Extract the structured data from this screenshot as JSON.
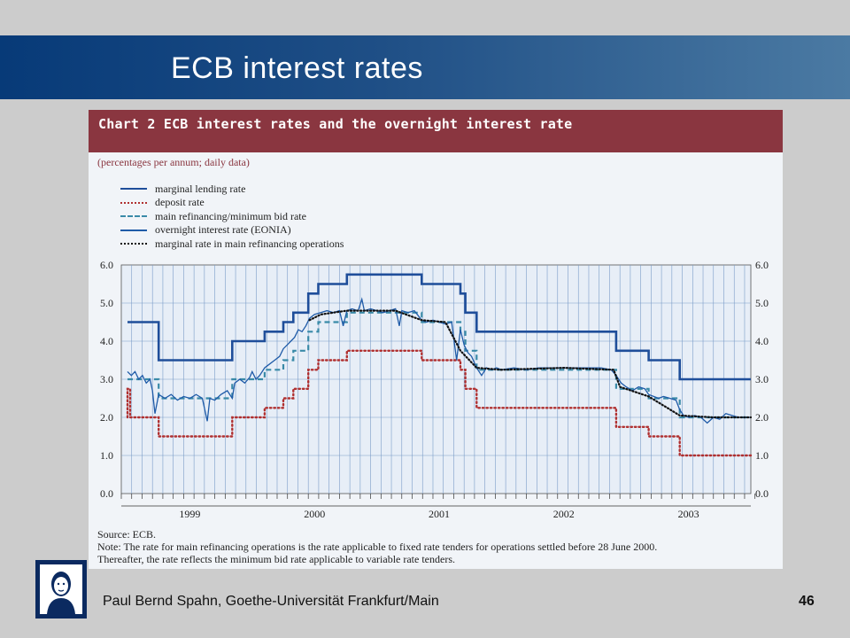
{
  "slide": {
    "title": "ECB interest rates",
    "footer": "Paul Bernd Spahn, Goethe-Universität Frankfurt/Main",
    "page_number": "46"
  },
  "colors": {
    "header_band": "#0b3d7a",
    "chart_header": "#8a3640",
    "chart_bg": "#f1f4f8",
    "grid": "#7a9cc8",
    "marginal_lending": "#1f4e9a",
    "deposit": "#b03030",
    "main_refinancing": "#3a8aa8",
    "eonia": "#1f5ba8",
    "marginal_mro": "#111111"
  },
  "chart_data": {
    "type": "line",
    "title": "Chart 2 ECB interest rates and the overnight interest rate",
    "subtitle": "(percentages per annum; daily data)",
    "xlabel": "",
    "ylabel": "",
    "x_ticks": [
      "1999",
      "2000",
      "2001",
      "2002",
      "2003"
    ],
    "xlim": [
      1998.95,
      2004.0
    ],
    "ylim": [
      0.0,
      6.0
    ],
    "y_ticks": [
      "0.0",
      "1.0",
      "2.0",
      "3.0",
      "4.0",
      "5.0",
      "6.0"
    ],
    "grid": true,
    "legend_position": "top-left",
    "series": [
      {
        "name": "marginal lending rate",
        "style": "solid-thick",
        "points": [
          [
            1999.0,
            4.5
          ],
          [
            1999.06,
            4.5
          ],
          [
            1999.06,
            4.5
          ],
          [
            1999.25,
            4.5
          ],
          [
            1999.25,
            3.5
          ],
          [
            1999.84,
            3.5
          ],
          [
            1999.84,
            4.0
          ],
          [
            2000.1,
            4.0
          ],
          [
            2000.1,
            4.25
          ],
          [
            2000.25,
            4.25
          ],
          [
            2000.25,
            4.5
          ],
          [
            2000.33,
            4.5
          ],
          [
            2000.33,
            4.75
          ],
          [
            2000.45,
            4.75
          ],
          [
            2000.45,
            5.25
          ],
          [
            2000.53,
            5.25
          ],
          [
            2000.53,
            5.5
          ],
          [
            2000.76,
            5.5
          ],
          [
            2000.76,
            5.75
          ],
          [
            2001.36,
            5.75
          ],
          [
            2001.36,
            5.5
          ],
          [
            2001.67,
            5.5
          ],
          [
            2001.67,
            5.25
          ],
          [
            2001.71,
            5.25
          ],
          [
            2001.71,
            4.75
          ],
          [
            2001.8,
            4.75
          ],
          [
            2001.8,
            4.25
          ],
          [
            2002.92,
            4.25
          ],
          [
            2002.92,
            3.75
          ],
          [
            2003.18,
            3.75
          ],
          [
            2003.18,
            3.5
          ],
          [
            2003.43,
            3.5
          ],
          [
            2003.43,
            3.0
          ],
          [
            2004.0,
            3.0
          ]
        ]
      },
      {
        "name": "deposit rate",
        "style": "dotted",
        "points": [
          [
            1999.0,
            2.0
          ],
          [
            1999.0,
            2.75
          ],
          [
            1999.02,
            2.75
          ],
          [
            1999.02,
            2.0
          ],
          [
            1999.25,
            2.0
          ],
          [
            1999.25,
            1.5
          ],
          [
            1999.84,
            1.5
          ],
          [
            1999.84,
            2.0
          ],
          [
            2000.1,
            2.0
          ],
          [
            2000.1,
            2.25
          ],
          [
            2000.25,
            2.25
          ],
          [
            2000.25,
            2.5
          ],
          [
            2000.33,
            2.5
          ],
          [
            2000.33,
            2.75
          ],
          [
            2000.45,
            2.75
          ],
          [
            2000.45,
            3.25
          ],
          [
            2000.53,
            3.25
          ],
          [
            2000.53,
            3.5
          ],
          [
            2000.76,
            3.5
          ],
          [
            2000.76,
            3.75
          ],
          [
            2001.36,
            3.75
          ],
          [
            2001.36,
            3.5
          ],
          [
            2001.67,
            3.5
          ],
          [
            2001.67,
            3.25
          ],
          [
            2001.71,
            3.25
          ],
          [
            2001.71,
            2.75
          ],
          [
            2001.8,
            2.75
          ],
          [
            2001.8,
            2.25
          ],
          [
            2002.92,
            2.25
          ],
          [
            2002.92,
            1.75
          ],
          [
            2003.18,
            1.75
          ],
          [
            2003.18,
            1.5
          ],
          [
            2003.43,
            1.5
          ],
          [
            2003.43,
            1.0
          ],
          [
            2004.0,
            1.0
          ]
        ]
      },
      {
        "name": "main refinancing/minimum bid rate",
        "style": "dashed",
        "points": [
          [
            1999.0,
            3.0
          ],
          [
            1999.25,
            3.0
          ],
          [
            1999.25,
            2.5
          ],
          [
            1999.84,
            2.5
          ],
          [
            1999.84,
            3.0
          ],
          [
            2000.1,
            3.0
          ],
          [
            2000.1,
            3.25
          ],
          [
            2000.25,
            3.25
          ],
          [
            2000.25,
            3.5
          ],
          [
            2000.33,
            3.5
          ],
          [
            2000.33,
            3.75
          ],
          [
            2000.45,
            3.75
          ],
          [
            2000.45,
            4.25
          ],
          [
            2000.53,
            4.25
          ],
          [
            2000.53,
            4.5
          ],
          [
            2000.76,
            4.5
          ],
          [
            2000.76,
            4.75
          ],
          [
            2001.36,
            4.75
          ],
          [
            2001.36,
            4.5
          ],
          [
            2001.67,
            4.5
          ],
          [
            2001.67,
            4.25
          ],
          [
            2001.71,
            4.25
          ],
          [
            2001.71,
            3.75
          ],
          [
            2001.8,
            3.75
          ],
          [
            2001.8,
            3.25
          ],
          [
            2002.92,
            3.25
          ],
          [
            2002.92,
            2.75
          ],
          [
            2003.18,
            2.75
          ],
          [
            2003.18,
            2.5
          ],
          [
            2003.43,
            2.5
          ],
          [
            2003.43,
            2.0
          ],
          [
            2004.0,
            2.0
          ]
        ]
      },
      {
        "name": "overnight interest rate (EONIA)",
        "style": "solid-thin",
        "points": [
          [
            1999.0,
            3.2
          ],
          [
            1999.03,
            3.1
          ],
          [
            1999.06,
            3.2
          ],
          [
            1999.09,
            3.0
          ],
          [
            1999.12,
            3.1
          ],
          [
            1999.15,
            2.9
          ],
          [
            1999.18,
            3.0
          ],
          [
            1999.2,
            2.7
          ],
          [
            1999.22,
            2.1
          ],
          [
            1999.25,
            2.6
          ],
          [
            1999.3,
            2.5
          ],
          [
            1999.35,
            2.6
          ],
          [
            1999.4,
            2.45
          ],
          [
            1999.45,
            2.55
          ],
          [
            1999.5,
            2.5
          ],
          [
            1999.55,
            2.6
          ],
          [
            1999.6,
            2.5
          ],
          [
            1999.64,
            1.9
          ],
          [
            1999.66,
            2.5
          ],
          [
            1999.7,
            2.45
          ],
          [
            1999.75,
            2.6
          ],
          [
            1999.8,
            2.7
          ],
          [
            1999.84,
            2.5
          ],
          [
            1999.86,
            2.9
          ],
          [
            1999.9,
            3.0
          ],
          [
            1999.94,
            2.9
          ],
          [
            1999.98,
            3.05
          ],
          [
            2000.0,
            3.2
          ],
          [
            2000.03,
            3.0
          ],
          [
            2000.06,
            3.1
          ],
          [
            2000.1,
            3.3
          ],
          [
            2000.14,
            3.4
          ],
          [
            2000.18,
            3.5
          ],
          [
            2000.22,
            3.6
          ],
          [
            2000.25,
            3.8
          ],
          [
            2000.28,
            3.9
          ],
          [
            2000.31,
            4.0
          ],
          [
            2000.34,
            4.1
          ],
          [
            2000.37,
            4.3
          ],
          [
            2000.4,
            4.25
          ],
          [
            2000.43,
            4.4
          ],
          [
            2000.46,
            4.6
          ],
          [
            2000.5,
            4.7
          ],
          [
            2000.55,
            4.75
          ],
          [
            2000.6,
            4.8
          ],
          [
            2000.65,
            4.75
          ],
          [
            2000.7,
            4.8
          ],
          [
            2000.73,
            4.4
          ],
          [
            2000.76,
            4.8
          ],
          [
            2000.8,
            4.85
          ],
          [
            2000.85,
            4.8
          ],
          [
            2000.88,
            5.1
          ],
          [
            2000.9,
            4.8
          ],
          [
            2000.95,
            4.85
          ],
          [
            2001.0,
            4.8
          ],
          [
            2001.05,
            4.75
          ],
          [
            2001.1,
            4.8
          ],
          [
            2001.15,
            4.85
          ],
          [
            2001.18,
            4.4
          ],
          [
            2001.2,
            4.8
          ],
          [
            2001.25,
            4.75
          ],
          [
            2001.3,
            4.8
          ],
          [
            2001.36,
            4.55
          ],
          [
            2001.4,
            4.5
          ],
          [
            2001.45,
            4.55
          ],
          [
            2001.5,
            4.5
          ],
          [
            2001.55,
            4.45
          ],
          [
            2001.6,
            4.5
          ],
          [
            2001.64,
            3.5
          ],
          [
            2001.67,
            4.3
          ],
          [
            2001.7,
            3.9
          ],
          [
            2001.73,
            3.7
          ],
          [
            2001.76,
            3.6
          ],
          [
            2001.8,
            3.3
          ],
          [
            2001.84,
            3.1
          ],
          [
            2001.88,
            3.3
          ],
          [
            2001.92,
            3.25
          ],
          [
            2001.96,
            3.3
          ],
          [
            2002.0,
            3.25
          ],
          [
            2002.1,
            3.3
          ],
          [
            2002.2,
            3.25
          ],
          [
            2002.3,
            3.3
          ],
          [
            2002.4,
            3.3
          ],
          [
            2002.5,
            3.3
          ],
          [
            2002.6,
            3.3
          ],
          [
            2002.7,
            3.3
          ],
          [
            2002.8,
            3.3
          ],
          [
            2002.88,
            3.25
          ],
          [
            2002.92,
            3.1
          ],
          [
            2002.96,
            2.9
          ],
          [
            2003.0,
            2.8
          ],
          [
            2003.05,
            2.7
          ],
          [
            2003.1,
            2.8
          ],
          [
            2003.15,
            2.75
          ],
          [
            2003.18,
            2.6
          ],
          [
            2003.22,
            2.55
          ],
          [
            2003.26,
            2.5
          ],
          [
            2003.3,
            2.55
          ],
          [
            2003.35,
            2.5
          ],
          [
            2003.4,
            2.45
          ],
          [
            2003.43,
            2.2
          ],
          [
            2003.46,
            2.05
          ],
          [
            2003.5,
            2.0
          ],
          [
            2003.55,
            2.05
          ],
          [
            2003.6,
            2.0
          ],
          [
            2003.65,
            1.85
          ],
          [
            2003.7,
            2.0
          ],
          [
            2003.75,
            1.95
          ],
          [
            2003.8,
            2.1
          ],
          [
            2003.85,
            2.05
          ],
          [
            2003.9,
            2.0
          ],
          [
            2003.95,
            2.0
          ],
          [
            2004.0,
            2.0
          ]
        ]
      },
      {
        "name": "marginal rate in main refinancing operations",
        "style": "dotted-black",
        "points": [
          [
            2000.46,
            4.55
          ],
          [
            2000.55,
            4.7
          ],
          [
            2000.65,
            4.75
          ],
          [
            2000.76,
            4.8
          ],
          [
            2000.9,
            4.8
          ],
          [
            2001.0,
            4.8
          ],
          [
            2001.15,
            4.8
          ],
          [
            2001.36,
            4.55
          ],
          [
            2001.55,
            4.5
          ],
          [
            2001.67,
            3.75
          ],
          [
            2001.8,
            3.3
          ],
          [
            2002.0,
            3.25
          ],
          [
            2002.5,
            3.3
          ],
          [
            2002.9,
            3.25
          ],
          [
            2002.95,
            2.8
          ],
          [
            2003.18,
            2.55
          ],
          [
            2003.43,
            2.05
          ],
          [
            2003.7,
            2.0
          ],
          [
            2004.0,
            2.0
          ]
        ]
      }
    ]
  },
  "figure": {
    "source": "Source: ECB.",
    "note_line1": "Note: The rate for main refinancing operations is the rate applicable to fixed rate tenders for operations settled before 28 June 2000.",
    "note_line2": "Thereafter, the rate reflects the minimum bid rate applicable to variable rate tenders."
  }
}
